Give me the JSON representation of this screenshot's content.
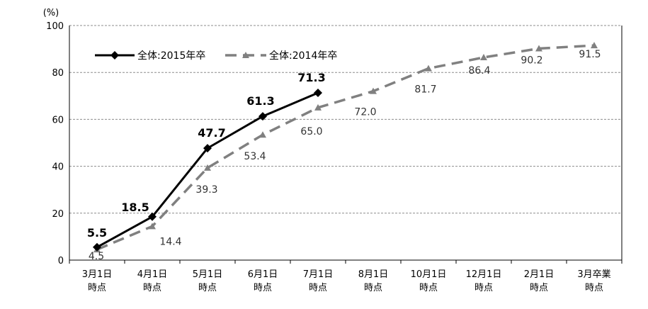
{
  "chart_data": {
    "type": "line",
    "unit_label": "(%)",
    "ylim": [
      0,
      100
    ],
    "yticks": [
      0,
      20,
      40,
      60,
      80,
      100
    ],
    "grid": true,
    "legend_placement": "top-left",
    "categories": [
      [
        "3月1日",
        "時点"
      ],
      [
        "4月1日",
        "時点"
      ],
      [
        "5月1日",
        "時点"
      ],
      [
        "6月1日",
        "時点"
      ],
      [
        "7月1日",
        "時点"
      ],
      [
        "8月1日",
        "時点"
      ],
      [
        "10月1日",
        "時点"
      ],
      [
        "12月1日",
        "時点"
      ],
      [
        "2月1日",
        "時点"
      ],
      [
        "3月卒業",
        "時点"
      ]
    ],
    "series": [
      {
        "name": "全体:2015年卒",
        "color": "#000000",
        "style": "solid",
        "marker": "diamond",
        "values": [
          5.5,
          18.5,
          47.7,
          61.3,
          71.3,
          null,
          null,
          null,
          null,
          null
        ],
        "labels": [
          "5.5",
          "18.5",
          "47.7",
          "61.3",
          "71.3"
        ]
      },
      {
        "name": "全体:2014年卒",
        "color": "#808080",
        "style": "dashed",
        "marker": "triangle",
        "values": [
          4.5,
          14.4,
          39.3,
          53.4,
          65.0,
          72.0,
          81.7,
          86.4,
          90.2,
          91.5
        ],
        "labels": [
          "4.5",
          "14.4",
          "39.3",
          "53.4",
          "65.0",
          "72.0",
          "81.7",
          "86.4",
          "90.2",
          "91.5"
        ]
      }
    ]
  }
}
